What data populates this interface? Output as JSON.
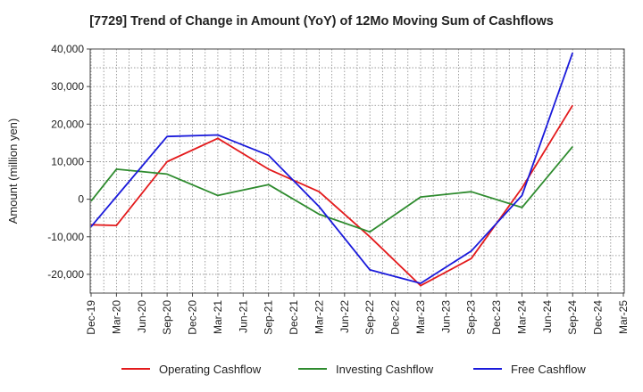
{
  "chart_data": {
    "type": "line",
    "title": "[7729]  Trend of Change in Amount (YoY) of 12Mo Moving Sum of Cashflows",
    "xlabel": "",
    "ylabel": "Amount (million yen)",
    "ylim": [
      -25000,
      40000
    ],
    "yticks": [
      -20000,
      -10000,
      0,
      10000,
      20000,
      30000,
      40000
    ],
    "ytick_labels": [
      "-20,000",
      "-10,000",
      "0",
      "10,000",
      "20,000",
      "30,000",
      "40,000"
    ],
    "categories": [
      "Dec-19",
      "Mar-20",
      "Jun-20",
      "Sep-20",
      "Dec-20",
      "Mar-21",
      "Jun-21",
      "Sep-21",
      "Dec-21",
      "Mar-22",
      "Jun-22",
      "Sep-22",
      "Dec-22",
      "Mar-23",
      "Jun-23",
      "Sep-23",
      "Dec-23",
      "Mar-24",
      "Jun-24",
      "Sep-24",
      "Dec-24",
      "Mar-25"
    ],
    "grid": true,
    "legend_position": "bottom",
    "series": [
      {
        "name": "Operating Cashflow",
        "color": "#e31a1c",
        "values": [
          -6800,
          -7000,
          null,
          10000,
          null,
          16200,
          null,
          8000,
          null,
          2000,
          null,
          -10000,
          null,
          -23000,
          null,
          -15800,
          null,
          3000,
          null,
          25000,
          null,
          null
        ]
      },
      {
        "name": "Investing Cashflow",
        "color": "#2e8b2e",
        "values": [
          -500,
          8000,
          null,
          6700,
          null,
          1000,
          null,
          3900,
          null,
          -4000,
          null,
          -8700,
          null,
          600,
          null,
          2000,
          null,
          -2200,
          null,
          14000,
          null,
          null
        ]
      },
      {
        "name": "Free Cashflow",
        "color": "#1a1adb",
        "values": [
          -7300,
          null,
          null,
          16700,
          null,
          17100,
          null,
          11700,
          null,
          -2000,
          null,
          -18800,
          null,
          -22400,
          null,
          -13800,
          null,
          1000,
          null,
          39000,
          null,
          null
        ]
      }
    ]
  }
}
